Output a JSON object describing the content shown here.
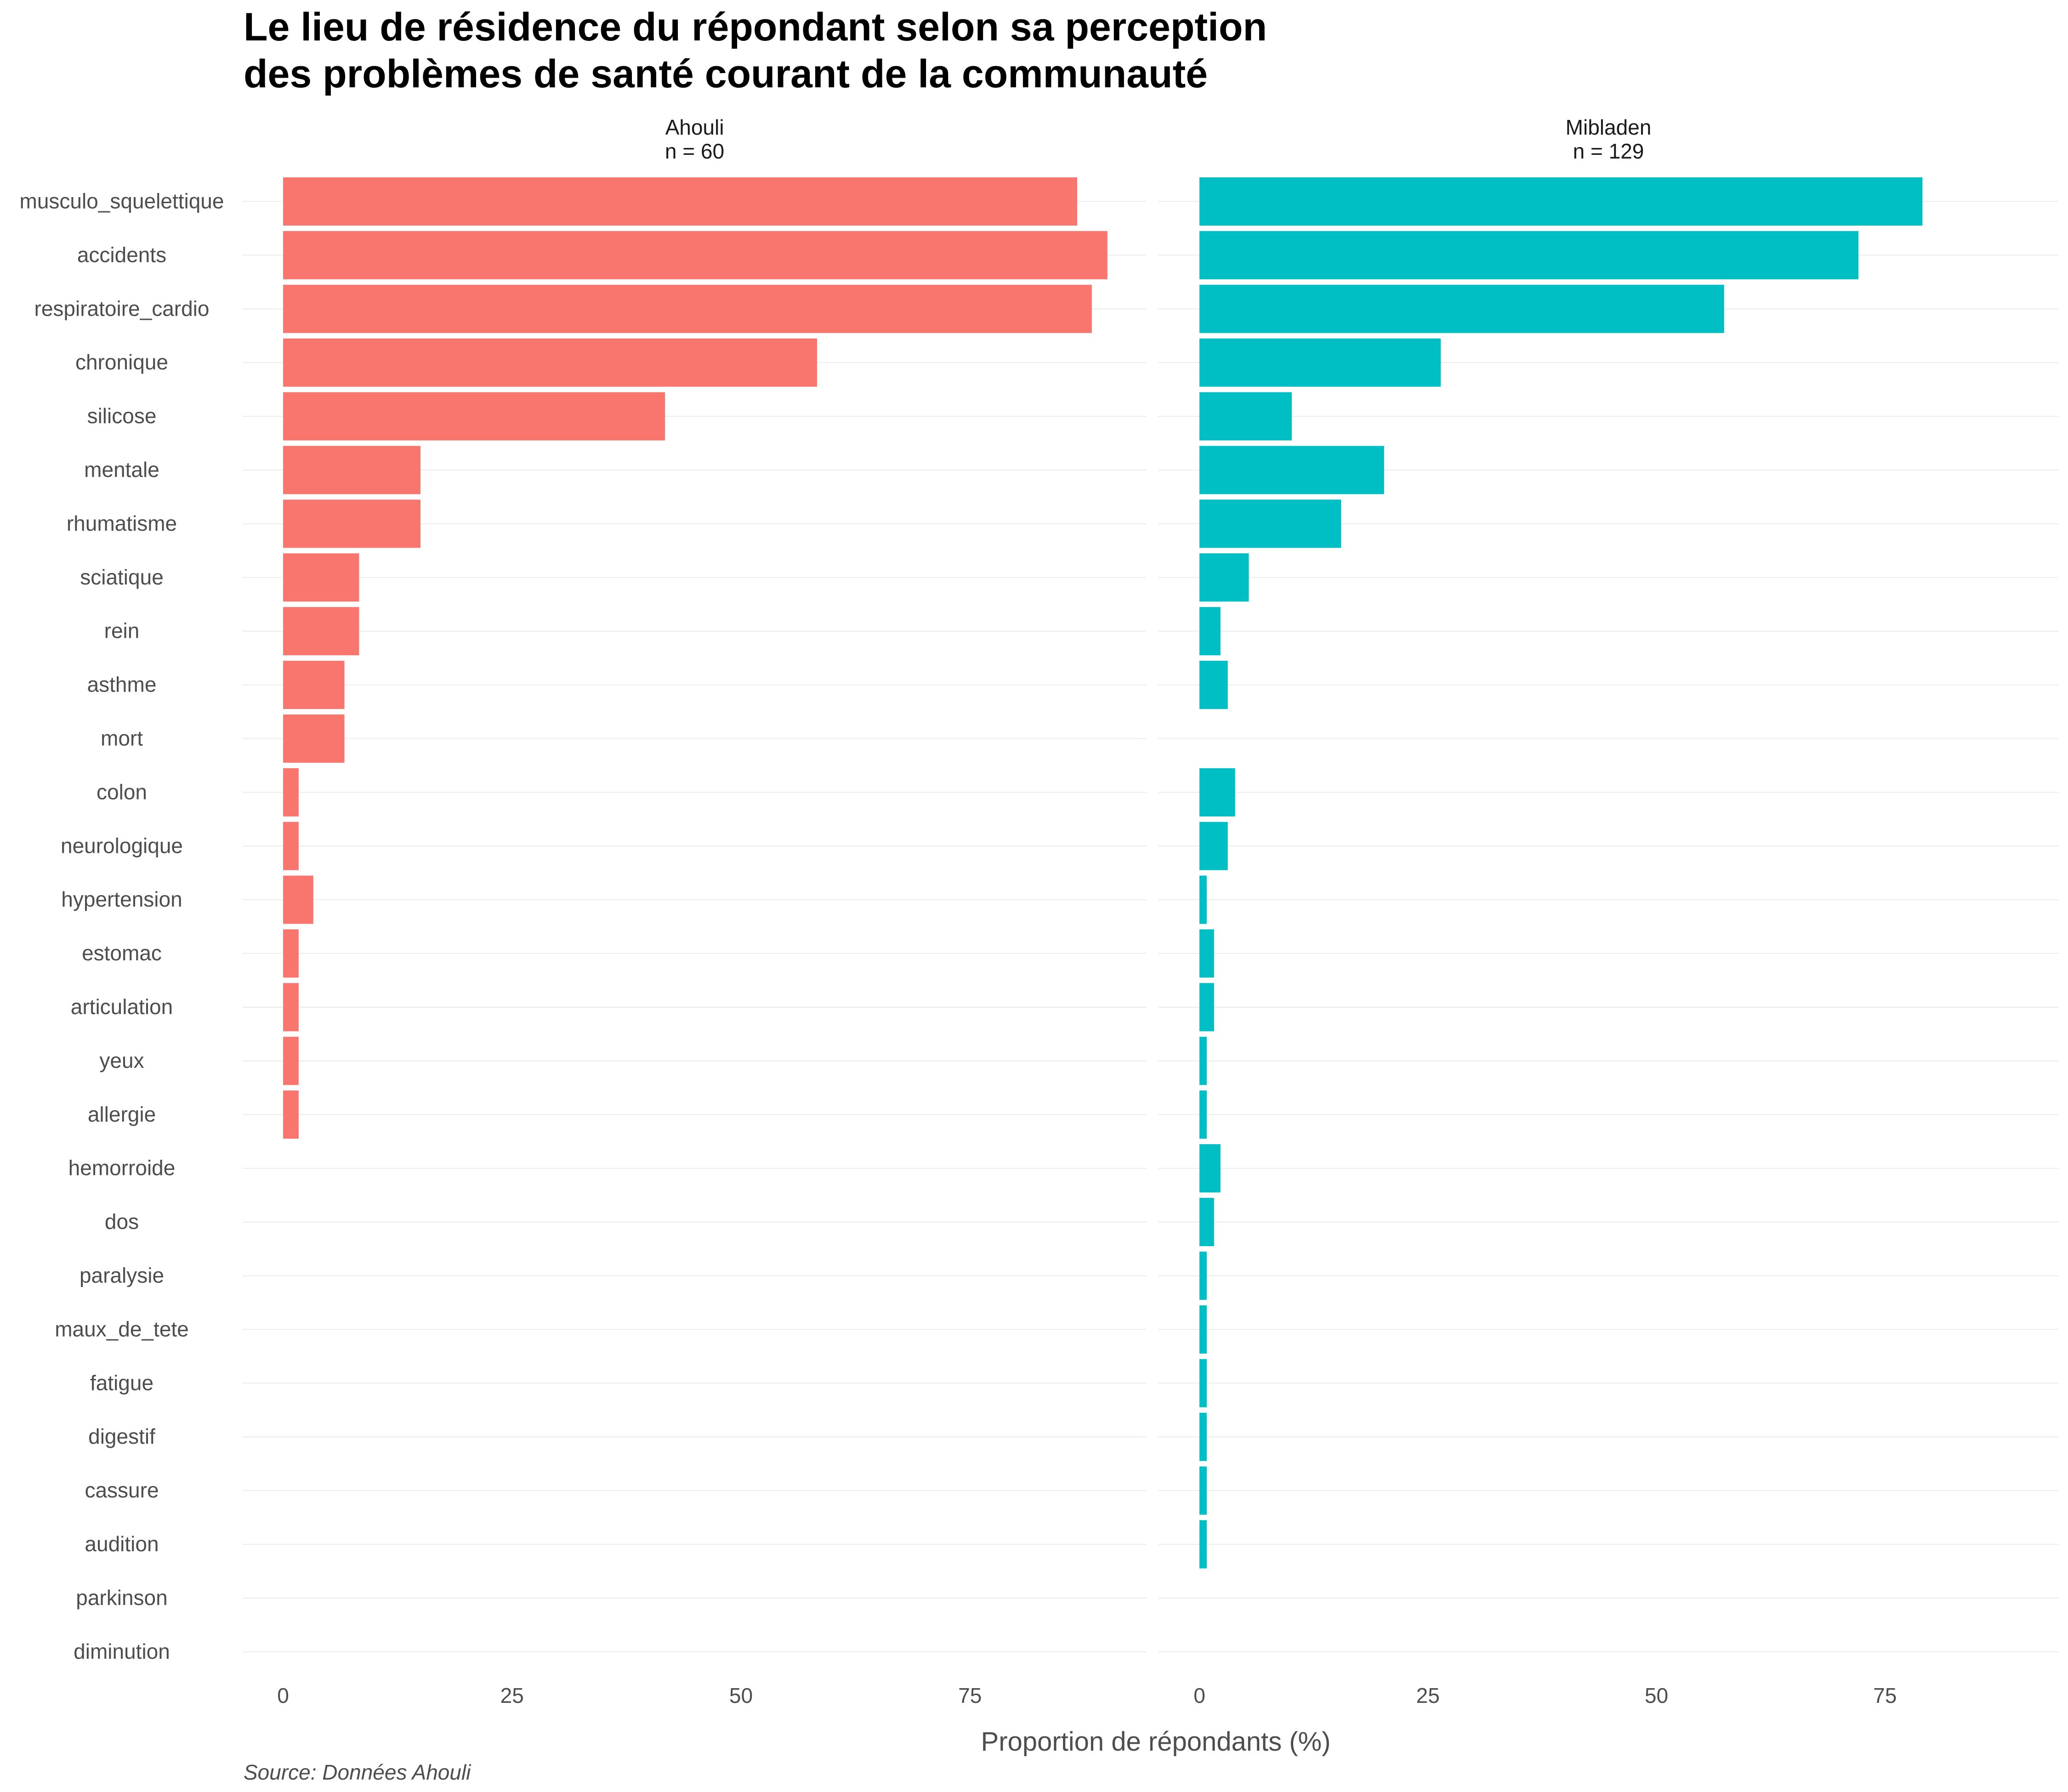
{
  "title_lines": [
    "Le lieu de résidence du répondant selon sa perception",
    "des problèmes de santé courant de la communauté"
  ],
  "source": "Source: Données Ahouli",
  "chart_data": {
    "type": "bar",
    "orientation": "horizontal",
    "xlabel": "Proportion de répondants (%)",
    "ylabel": "",
    "xlim": [
      0,
      95
    ],
    "x_ticks": [
      "0",
      "25",
      "50",
      "75"
    ],
    "grid": true,
    "legend": "none",
    "categories": [
      "musculo_squelettique",
      "accidents",
      "respiratoire_cardio",
      "chronique",
      "silicose",
      "mentale",
      "rhumatisme",
      "sciatique",
      "rein",
      "asthme",
      "mort",
      "colon",
      "neurologique",
      "hypertension",
      "estomac",
      "articulation",
      "yeux",
      "allergie",
      "hemorroide",
      "dos",
      "paralysie",
      "maux_de_tete",
      "fatigue",
      "digestif",
      "cassure",
      "audition",
      "parkinson",
      "diminution"
    ],
    "panels": [
      {
        "name": "Ahouli",
        "n_label": "n = 60",
        "color": "#F8766D",
        "values": [
          86.7,
          90.0,
          88.3,
          58.3,
          41.7,
          15.0,
          15.0,
          8.3,
          8.3,
          6.7,
          6.7,
          1.7,
          1.7,
          3.3,
          1.7,
          1.7,
          1.7,
          1.7,
          0,
          0,
          0,
          0,
          0,
          0,
          0,
          0,
          0,
          0
        ]
      },
      {
        "name": "Mibladen",
        "n_label": "n = 129",
        "color": "#00BFC4",
        "values": [
          79.1,
          72.1,
          57.4,
          26.4,
          10.1,
          20.2,
          15.5,
          5.4,
          2.3,
          3.1,
          0,
          3.9,
          3.1,
          0.8,
          1.6,
          1.6,
          0.8,
          0.8,
          2.3,
          1.6,
          0.8,
          0.8,
          0.8,
          0.8,
          0.8,
          0.8,
          0,
          0
        ]
      }
    ]
  }
}
